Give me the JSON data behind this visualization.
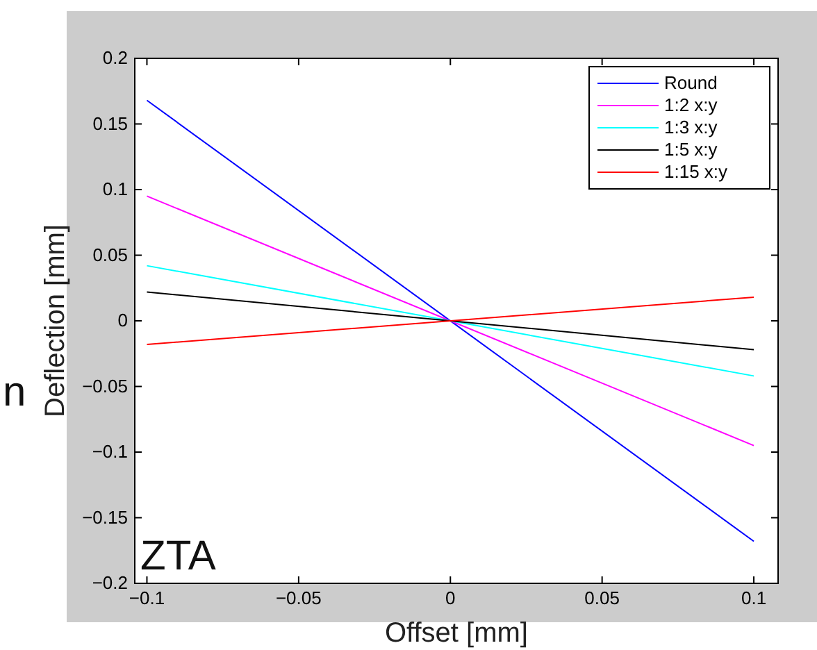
{
  "chart_data": {
    "type": "line",
    "xlabel": "Offset [mm]",
    "ylabel": "Deflection [mm]",
    "x": [
      -0.1,
      0.1
    ],
    "series": [
      {
        "name": "Round",
        "color": "#0000ff",
        "values": [
          0.168,
          -0.168
        ]
      },
      {
        "name": "1:2 x:y",
        "color": "#ff00ff",
        "values": [
          0.095,
          -0.095
        ]
      },
      {
        "name": "1:3 x:y",
        "color": "#00ffff",
        "values": [
          0.042,
          -0.042
        ]
      },
      {
        "name": "1:5 x:y",
        "color": "#000000",
        "values": [
          0.022,
          -0.022
        ]
      },
      {
        "name": "1:15 x:y",
        "color": "#ff0000",
        "values": [
          -0.018,
          0.018
        ]
      }
    ],
    "xlim": [
      -0.104,
      0.108
    ],
    "ylim": [
      -0.2,
      0.2
    ],
    "xticks": [
      {
        "value": -0.1,
        "label": "−0.1"
      },
      {
        "value": -0.05,
        "label": "−0.05"
      },
      0,
      0.05,
      0.1
    ],
    "yticks": [
      {
        "value": -0.2,
        "label": "−0.2"
      },
      {
        "value": -0.15,
        "label": "−0.15"
      },
      {
        "value": -0.1,
        "label": "−0.1"
      },
      {
        "value": -0.05,
        "label": "−0.05"
      },
      0,
      0.05,
      0.1,
      0.15,
      0.2
    ],
    "annotations": [
      "ZTA",
      "n"
    ],
    "legend": "top right",
    "grid": false,
    "line_style": "solid"
  }
}
